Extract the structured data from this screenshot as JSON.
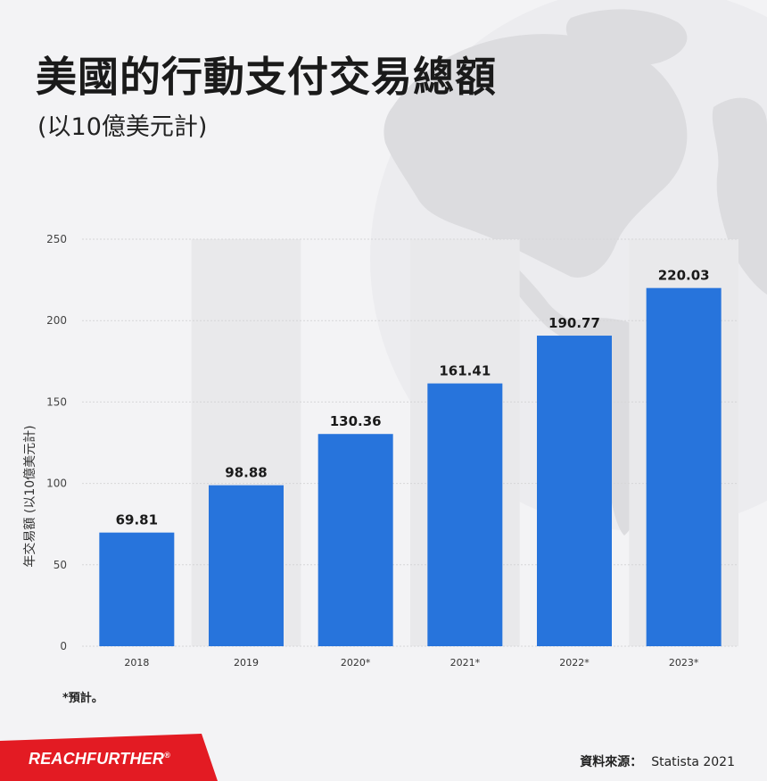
{
  "header": {
    "title": "美國的行動支付交易總額",
    "subtitle": "(以10億美元計)"
  },
  "footnote": "*預計。",
  "brand": {
    "name_part1": "REACH",
    "name_part2": "FURTHER",
    "mark": "®",
    "color": "#e31b23"
  },
  "source": {
    "label": "資料來源：",
    "value": "Statista 2021"
  },
  "colors": {
    "bar": "#2774dc",
    "band": "#e9e9eb",
    "grid": "#d6d6d8",
    "globe": "#dcdcdf"
  },
  "chart_data": {
    "type": "bar",
    "categories": [
      "2018",
      "2019",
      "2020*",
      "2021*",
      "2022*",
      "2023*"
    ],
    "values": [
      69.81,
      98.88,
      130.36,
      161.41,
      190.77,
      220.03
    ],
    "data_labels": [
      "69.81",
      "98.88",
      "130.36",
      "161.41",
      "190.77",
      "220.03"
    ],
    "title": "美國的行動支付交易總額",
    "subtitle": "(以10億美元計)",
    "xlabel": "",
    "ylabel": "年交易額 (以10億美元計)",
    "ylim": [
      0,
      250
    ],
    "yticks": [
      0,
      50,
      100,
      150,
      200,
      250
    ],
    "grid": true,
    "legend": "none"
  }
}
